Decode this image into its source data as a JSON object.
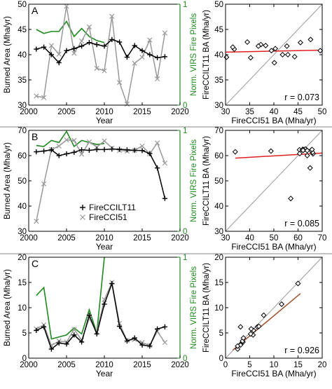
{
  "figure": {
    "rows": [
      {
        "panel_letter": "A",
        "left": {
          "ylabel": "Burned Area (Mha/yr)",
          "ylabel2": "Norm. VIRS Fire Pixels",
          "xlabel": "Year",
          "xlim": [
            2000,
            2020
          ],
          "xticks": [
            2000,
            2005,
            2010,
            2015,
            2020
          ],
          "ylim": [
            30,
            50
          ],
          "yticks": [
            30,
            35,
            40,
            45,
            50
          ],
          "y2ticks": [
            "0",
            "1"
          ]
        },
        "right": {
          "xlabel": "FireCCI51 BA (Mha/yr)",
          "ylabel": "FireCCILT11 BA (Mha/yr)",
          "lim": [
            30,
            50
          ],
          "ticks": [
            30,
            35,
            40,
            45,
            50
          ],
          "r_text": "r = 0.073"
        }
      },
      {
        "panel_letter": "B",
        "left": {
          "ylabel": "Burned Area (Mha/yr)",
          "ylabel2": "Norm. VIRS Fire Pixels",
          "xlabel": "Year",
          "xlim": [
            2000,
            2020
          ],
          "xticks": [
            2000,
            2005,
            2010,
            2015,
            2020
          ],
          "ylim": [
            30,
            70
          ],
          "yticks": [
            30,
            40,
            50,
            60,
            70
          ],
          "y2ticks": [
            "0",
            "1"
          ],
          "legend": [
            "FireCCILT11",
            "FireCCI51"
          ]
        },
        "right": {
          "xlabel": "FireCCI51 BA (Mha/yr)",
          "ylabel": "FireCCILT11 BA (Mha/yr)",
          "lim": [
            30,
            70
          ],
          "ticks": [
            30,
            40,
            50,
            60,
            70
          ],
          "r_text": "r = 0.085"
        }
      },
      {
        "panel_letter": "C",
        "left": {
          "ylabel": "Burned Area (Mha/yr)",
          "ylabel2": "Norm. VIRS Fire Pixels",
          "xlabel": "Year",
          "xlim": [
            2000,
            2020
          ],
          "xticks": [
            2000,
            2005,
            2010,
            2015,
            2020
          ],
          "ylim": [
            0,
            20
          ],
          "yticks": [
            0,
            5,
            10,
            15,
            20
          ],
          "y2ticks": [
            "0",
            "1"
          ]
        },
        "right": {
          "xlabel": "FireCCI51 BA (Mha/yr)",
          "ylabel": "FireCCILT11 BA (Mha/yr)",
          "lim": [
            0,
            20
          ],
          "ticks": [
            0,
            5,
            10,
            15,
            20
          ],
          "r_text": "r = 0.926"
        }
      }
    ]
  },
  "colors": {
    "ccilt11": "#000000",
    "cci51": "#999999",
    "virs": "#1f8a1f",
    "fit_a": "#e02020",
    "fit_b": "#e02020",
    "fit_c": "#a0522d",
    "one_to_one": "#9a9a9a",
    "separator": "#888888"
  },
  "chart_data": [
    {
      "type": "line",
      "panel": "A",
      "x": [
        2001,
        2002,
        2003,
        2004,
        2005,
        2006,
        2007,
        2008,
        2009,
        2010,
        2011,
        2012,
        2013,
        2014,
        2015,
        2016,
        2017,
        2018
      ],
      "series": [
        {
          "name": "FireCCILT11",
          "values": [
            41.1,
            41.5,
            40.0,
            38.4,
            40.8,
            41.2,
            41.7,
            42.4,
            42.0,
            41.7,
            43.0,
            42.5,
            39.5,
            41.8,
            40.8,
            40.0,
            39.4,
            39.6
          ]
        },
        {
          "name": "FireCCI51",
          "values": [
            31.8,
            31.5,
            41.8,
            40.1,
            49.6,
            40.3,
            42.7,
            45.5,
            37.3,
            36.8,
            47.6,
            34.5,
            30.2,
            38.3,
            39.5,
            42.9,
            35.2,
            44.3
          ]
        }
      ],
      "virs_normalized": {
        "x": [
          2001,
          2002,
          2003,
          2004,
          2005,
          2006,
          2007,
          2008,
          2009,
          2010
        ],
        "values": [
          0.75,
          0.71,
          0.73,
          0.73,
          0.83,
          0.68,
          0.76,
          0.68,
          0.64,
          0.62
        ]
      }
    },
    {
      "type": "scatter",
      "panel": "A",
      "xlabel": "FireCCI51 BA (Mha/yr)",
      "ylabel": "FireCCILT11 BA (Mha/yr)",
      "x": [
        31.8,
        31.5,
        41.8,
        40.1,
        49.6,
        40.3,
        42.7,
        45.5,
        37.3,
        36.8,
        47.6,
        34.5,
        30.2,
        38.3,
        39.5,
        42.9,
        35.2,
        44.3
      ],
      "y": [
        41.1,
        41.5,
        40.0,
        38.4,
        40.8,
        41.2,
        41.7,
        42.4,
        42.0,
        41.7,
        43.0,
        42.5,
        39.5,
        41.8,
        40.8,
        40.0,
        39.4,
        39.6
      ],
      "fit_line": {
        "x": [
          30,
          50
        ],
        "y": [
          40.5,
          40.9
        ]
      },
      "r": 0.073
    },
    {
      "type": "line",
      "panel": "B",
      "x": [
        2001,
        2002,
        2003,
        2004,
        2005,
        2006,
        2007,
        2008,
        2009,
        2010,
        2011,
        2012,
        2013,
        2014,
        2015,
        2016,
        2017,
        2018
      ],
      "series": [
        {
          "name": "FireCCILT11",
          "values": [
            61.5,
            61.8,
            62.3,
            60.0,
            60.7,
            61.3,
            62.3,
            62.1,
            62.4,
            62.4,
            62.6,
            62.5,
            62.3,
            62.1,
            62.0,
            60.8,
            55.1,
            43.0
          ]
        },
        {
          "name": "FireCCI51",
          "values": [
            34.0,
            48.8,
            62.4,
            63.8,
            66.2,
            66.0,
            60.6,
            65.4,
            63.4,
            65.8,
            63.0,
            62.0,
            61.8,
            62.1,
            63.8,
            60.7,
            65.0,
            57.0
          ]
        }
      ],
      "virs_normalized": {
        "x": [
          2001,
          2002,
          2003,
          2004,
          2005,
          2006,
          2007,
          2008,
          2009,
          2010
        ],
        "values": [
          0.85,
          0.84,
          0.9,
          0.88,
          0.99,
          0.84,
          0.9,
          0.88,
          0.86,
          0.87
        ]
      }
    },
    {
      "type": "scatter",
      "panel": "B",
      "xlabel": "FireCCI51 BA (Mha/yr)",
      "ylabel": "FireCCILT11 BA (Mha/yr)",
      "x": [
        34.0,
        48.8,
        62.4,
        63.8,
        66.2,
        66.0,
        60.6,
        65.4,
        63.4,
        65.8,
        63.0,
        62.0,
        61.8,
        62.1,
        63.8,
        60.7,
        65.0,
        57.0
      ],
      "y": [
        61.5,
        61.8,
        62.3,
        60.0,
        60.7,
        61.3,
        62.3,
        62.1,
        62.4,
        62.4,
        62.6,
        62.5,
        62.3,
        62.1,
        62.0,
        60.8,
        55.1,
        43.0
      ],
      "fit_line": {
        "x": [
          34,
          70
        ],
        "y": [
          59.0,
          61.0
        ]
      },
      "r": 0.085
    },
    {
      "type": "line",
      "panel": "C",
      "x": [
        2001,
        2002,
        2003,
        2004,
        2005,
        2006,
        2007,
        2008,
        2009,
        2010,
        2011,
        2012,
        2013,
        2014,
        2015,
        2016,
        2017,
        2018
      ],
      "series": [
        {
          "name": "FireCCILT11",
          "values": [
            5.5,
            6.2,
            1.8,
            3.0,
            2.8,
            4.6,
            3.2,
            8.5,
            4.8,
            10.7,
            14.8,
            6.3,
            3.4,
            4.0,
            2.6,
            2.4,
            5.8,
            6.2
          ]
        },
        {
          "name": "FireCCI51",
          "values": [
            5.8,
            6.6,
            2.5,
            3.4,
            3.2,
            5.7,
            3.6,
            7.9,
            5.2,
            11.6,
            15.0,
            6.9,
            3.5,
            3.7,
            3.1,
            2.5,
            5.3,
            3.1
          ]
        }
      ],
      "virs_normalized": {
        "x": [
          2001,
          2002,
          2003,
          2004,
          2005,
          2006,
          2007,
          2008,
          2009,
          2010
        ],
        "values": [
          0.62,
          0.7,
          0.19,
          0.21,
          0.23,
          0.3,
          0.24,
          0.48,
          0.25,
          1.0
        ]
      }
    },
    {
      "type": "scatter",
      "panel": "C",
      "xlabel": "FireCCI51 BA (Mha/yr)",
      "ylabel": "FireCCILT11 BA (Mha/yr)",
      "x": [
        5.8,
        6.6,
        2.5,
        3.4,
        3.2,
        5.7,
        3.6,
        7.9,
        5.2,
        11.6,
        15.0,
        6.9,
        3.5,
        3.7,
        3.1,
        2.5,
        5.3,
        3.1
      ],
      "y": [
        5.5,
        6.2,
        1.8,
        3.0,
        2.8,
        4.6,
        3.2,
        8.5,
        4.8,
        10.7,
        14.8,
        6.3,
        3.4,
        4.0,
        2.6,
        2.4,
        5.8,
        6.2
      ],
      "fit_line": {
        "x": [
          1.5,
          15.5
        ],
        "y": [
          1.6,
          12.8
        ]
      },
      "r": 0.926
    }
  ]
}
